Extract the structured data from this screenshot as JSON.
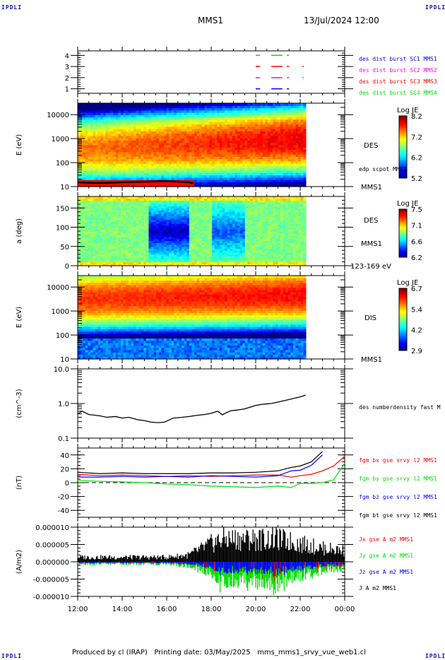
{
  "corner_labels": {
    "top_left": "IPDLI",
    "top_right": "IPDLI",
    "bottom_left": "IPDLI",
    "bottom_right": "IPDLI"
  },
  "header": {
    "spacecraft": "MMS1",
    "datetime": "13/Jul/2024 12:00"
  },
  "footer": {
    "text": "Produced by cl (IRAP)   Printing date: 03/May/2025   mms_mms1_srvy_vue_web1.cl"
  },
  "time_axis": {
    "ticks": [
      "12:00",
      "14:00",
      "16:00",
      "18:00",
      "20:00",
      "22:00",
      "00:00"
    ],
    "start_hour": 12,
    "end_hour": 24
  },
  "colors": {
    "blue": "#0000ff",
    "magenta": "#ff00ff",
    "red": "#ff0000",
    "green": "#00e000",
    "black": "#000000"
  },
  "chart_data": [
    {
      "type": "line",
      "name": "burst-flags",
      "ylabel": "",
      "ylim": [
        0.6,
        4.4
      ],
      "yticks": [
        "1",
        "2",
        "3",
        "4"
      ],
      "legend_placement": "right",
      "legend": [
        {
          "label": "des dist burst SC1 MMS1",
          "color": "#0000ff"
        },
        {
          "label": "des dist burst SC2 MMS2",
          "color": "#ff00ff"
        },
        {
          "label": "des dist burst SC3 MMS3",
          "color": "#ff0000"
        },
        {
          "label": "des dist burst SC4 MMS4",
          "color": "#00e000"
        }
      ],
      "series": [
        {
          "name": "SC4 (level 4)",
          "color": "#00e000",
          "level": 4,
          "intervals": [
            [
              20.0,
              20.2
            ],
            [
              20.7,
              21.2
            ],
            [
              21.4,
              21.5
            ]
          ]
        },
        {
          "name": "SC3 (level 3)",
          "color": "#ff0000",
          "level": 3,
          "intervals": [
            [
              20.0,
              20.2
            ],
            [
              20.7,
              21.2
            ],
            [
              21.4,
              21.5
            ],
            [
              22.1,
              22.15
            ]
          ]
        },
        {
          "name": "SC2 (level 2)",
          "color": "#ff00ff",
          "level": 2,
          "intervals": [
            [
              20.0,
              20.2
            ],
            [
              20.7,
              21.2
            ],
            [
              21.4,
              21.5
            ],
            [
              22.1,
              22.15
            ]
          ]
        },
        {
          "name": "SC1 (level 1)",
          "color": "#0000ff",
          "level": 1,
          "intervals": [
            [
              20.0,
              20.2
            ],
            [
              20.7,
              21.2
            ],
            [
              21.4,
              21.5
            ]
          ]
        }
      ]
    },
    {
      "type": "heatmap",
      "name": "des-energy-spectrogram",
      "ylabel": "E (eV)",
      "yscale": "log",
      "ylim": [
        10,
        30000
      ],
      "yticks": [
        "10",
        "100",
        "1000",
        "10000"
      ],
      "side_labels": [
        "DES",
        "edp scpot MMS1",
        "MMS1"
      ],
      "colorbar": {
        "title": "Log JE",
        "ticks": [
          "5.2",
          "6.2",
          "7.2",
          "8.2"
        ],
        "range": [
          5.2,
          8.2
        ]
      },
      "data_end_hour": 22.25,
      "peak_energy_eV": [
        500,
        500,
        700,
        1000,
        1500,
        2000,
        2500
      ],
      "peak_hours": [
        12,
        14,
        16,
        18,
        20,
        21,
        22
      ],
      "scpot_overlay": {
        "label": "edp scpot MMS1",
        "hours": [
          12,
          13,
          14,
          15,
          16,
          17,
          17.2
        ],
        "values_eV": [
          15,
          14,
          15,
          16,
          17,
          15,
          14
        ]
      }
    },
    {
      "type": "heatmap",
      "name": "des-pitch-angle",
      "ylabel": "a (deg)",
      "ylim": [
        0,
        180
      ],
      "yticks": [
        "0",
        "50",
        "100",
        "150"
      ],
      "side_labels": [
        "DES",
        "MMS1",
        "123-169 eV"
      ],
      "colorbar": {
        "title": "Log JE",
        "ticks": [
          "6.2",
          "6.6",
          "7.1",
          "7.5"
        ],
        "range": [
          6.2,
          7.5
        ]
      },
      "data_end_hour": 22.25
    },
    {
      "type": "heatmap",
      "name": "dis-energy-spectrogram",
      "ylabel": "E (eV)",
      "yscale": "log",
      "ylim": [
        10,
        30000
      ],
      "yticks": [
        "10",
        "100",
        "1000",
        "10000"
      ],
      "side_labels": [
        "DIS",
        "MMS1"
      ],
      "colorbar": {
        "title": "Log JE",
        "ticks": [
          "2.9",
          "4.2",
          "5.4",
          "6.7"
        ],
        "range": [
          2.9,
          6.7
        ]
      },
      "data_end_hour": 22.25
    },
    {
      "type": "line",
      "name": "des-number-density",
      "ylabel": "(cm^-3)",
      "yscale": "log",
      "ylim": [
        0.1,
        10.0
      ],
      "yticks": [
        "0.1",
        "1.0",
        "10.0"
      ],
      "legend": [
        {
          "label": "des numberdensity fast M",
          "color": "#000000"
        }
      ],
      "series": [
        {
          "name": "density",
          "color": "#000000",
          "x": [
            12.0,
            12.2,
            12.5,
            13.0,
            13.3,
            13.7,
            14.0,
            14.3,
            14.7,
            15.0,
            15.3,
            15.6,
            15.9,
            16.3,
            16.7,
            17.0,
            17.3,
            17.7,
            18.0,
            18.3,
            18.5,
            18.7,
            18.9,
            19.2,
            19.5,
            19.8,
            20.0,
            20.3,
            20.7,
            21.0,
            21.5,
            22.0,
            22.25
          ],
          "y": [
            0.5,
            0.6,
            0.48,
            0.44,
            0.4,
            0.42,
            0.38,
            0.4,
            0.34,
            0.32,
            0.29,
            0.28,
            0.29,
            0.38,
            0.4,
            0.42,
            0.45,
            0.48,
            0.52,
            0.6,
            0.47,
            0.55,
            0.62,
            0.65,
            0.7,
            0.8,
            0.88,
            0.95,
            1.0,
            1.1,
            1.3,
            1.55,
            1.75
          ]
        }
      ]
    },
    {
      "type": "line",
      "name": "fgm-magnetic-field",
      "ylabel": "(nT)",
      "ylim": [
        -50,
        50
      ],
      "yticks": [
        "-40",
        "-20",
        "0",
        "20",
        "40"
      ],
      "legend": [
        {
          "label": "fgm bx gse srvy l2 MMS1",
          "color": "#ff0000"
        },
        {
          "label": "fgm by gse srvy l2 MMS1",
          "color": "#00e000"
        },
        {
          "label": "fgm bz gse srvy l2 MMS1",
          "color": "#0000ff"
        },
        {
          "label": "fgm bt gse srvy l2 MMS1",
          "color": "#000000"
        }
      ],
      "x": [
        12,
        13,
        14,
        15,
        16,
        17,
        18,
        19,
        20,
        21,
        21.6,
        22,
        22.5,
        23,
        23.5,
        24
      ],
      "series": [
        {
          "name": "bx",
          "color": "#ff0000",
          "values": [
            12,
            10,
            11,
            10,
            9,
            10,
            9,
            10,
            11,
            11,
            8,
            10,
            12,
            17,
            24,
            38
          ]
        },
        {
          "name": "by",
          "color": "#00e000",
          "values": [
            3,
            2,
            1,
            0,
            -2,
            -3,
            -5,
            -6,
            -7,
            -5,
            -7,
            -1,
            -1,
            0,
            4,
            28
          ]
        },
        {
          "name": "bz",
          "color": "#0000ff",
          "values": [
            8,
            8,
            9,
            8,
            9,
            8,
            10,
            9,
            8,
            10,
            17,
            18,
            25,
            40,
            null,
            null
          ]
        },
        {
          "name": "bt",
          "color": "#000000",
          "values": [
            15,
            13,
            14,
            13,
            13,
            13,
            14,
            14,
            15,
            17,
            22,
            24,
            30,
            45,
            null,
            null
          ]
        }
      ],
      "zero_line": "dashed"
    },
    {
      "type": "line",
      "name": "current-density",
      "ylabel": "(A/m2)",
      "ylim": [
        -1e-05,
        1e-05
      ],
      "yticks": [
        "-0.000010",
        "-0.000005",
        "0.000000",
        "0.000005",
        "0.000010"
      ],
      "legend": [
        {
          "label": "Jx gse A m2 MMS1",
          "color": "#ff0000"
        },
        {
          "label": "Jy gse A m2 MMS1",
          "color": "#00e000"
        },
        {
          "label": "Jz gse A m2 MMS1",
          "color": "#0000ff"
        },
        {
          "label": "J A m2 MMS1",
          "color": "#000000"
        }
      ],
      "envelope_hours": [
        12,
        14,
        16,
        17,
        18,
        18.5,
        19,
        20,
        21,
        22,
        23,
        24
      ],
      "J_max": [
        2e-06,
        2e-06,
        2e-06,
        3e-06,
        8e-06,
        1e-05,
        1e-05,
        1e-05,
        1e-05,
        8e-06,
        6e-06,
        5e-06
      ],
      "Jy_min": [
        -1e-06,
        -1e-06,
        -1e-06,
        -2e-06,
        -5e-06,
        -1e-05,
        -8e-06,
        -9e-06,
        -1e-05,
        -6e-06,
        -4e-06,
        -3e-06
      ]
    }
  ]
}
